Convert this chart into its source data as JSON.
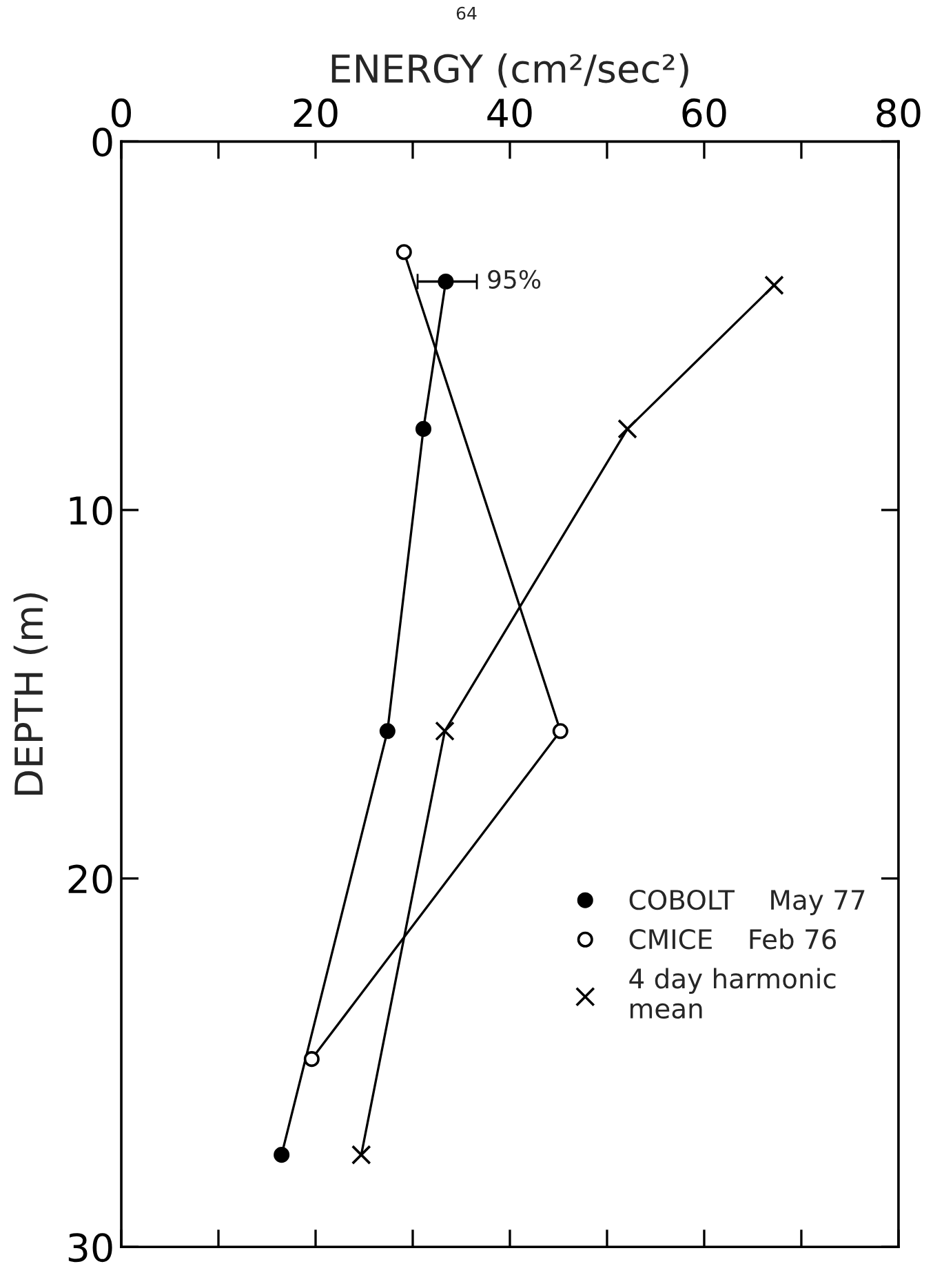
{
  "chart_data": {
    "type": "line",
    "xlabel": "ENERGY (cm²/sec²)",
    "ylabel": "DEPTH (m)",
    "xlim": [
      0,
      80
    ],
    "xticks": [
      0,
      {
        "value": 10,
        "label": null
      },
      20,
      {
        "value": 30,
        "label": null
      },
      40,
      {
        "value": 50,
        "label": null
      },
      60,
      {
        "value": 70,
        "label": null
      },
      80
    ],
    "ylim": [
      30,
      0
    ],
    "yticks": [
      0,
      10,
      20,
      30
    ],
    "legend": "bottom right",
    "grid": false,
    "series": [
      {
        "name": "COBOLT    May 77",
        "color": "#000000",
        "marker": "circle",
        "x": [
          33.4,
          31.1,
          27.4,
          16.5
        ],
        "values": [
          3.8,
          7.8,
          16.0,
          27.5
        ],
        "xerrors": [
          [
            30.5,
            36.6
          ],
          null,
          null,
          null
        ]
      },
      {
        "name": "CMICE    Feb 76",
        "color": "#000000",
        "marker": "circle",
        "colors": [
          "#ffffff",
          "#ffffff",
          "#ffffff"
        ],
        "x": [
          29.1,
          45.2,
          19.6
        ],
        "values": [
          3.0,
          16.0,
          24.9
        ]
      },
      {
        "name": "4 day harmonic\nmean",
        "color": "#000000",
        "marker": "cross",
        "x": [
          67.2,
          52.1,
          33.3,
          24.7
        ],
        "values": [
          3.9,
          7.8,
          16.0,
          27.5
        ]
      }
    ],
    "annotations": [
      "64",
      {
        "text": "95%",
        "x": 36.6,
        "y": 3.8
      }
    ]
  }
}
